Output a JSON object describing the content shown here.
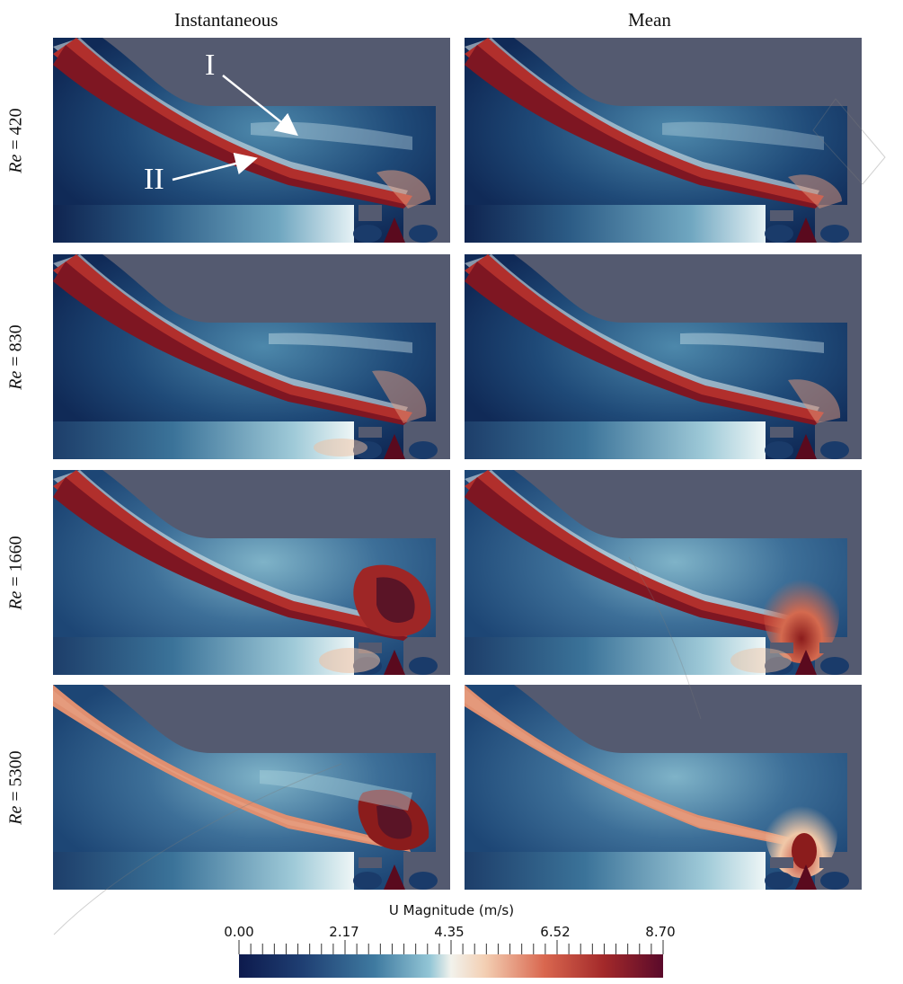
{
  "columns": [
    "Instantaneous",
    "Mean"
  ],
  "rows": [
    {
      "var": "Re",
      "op": "=",
      "value": "420"
    },
    {
      "var": "Re",
      "op": "=",
      "value": "830"
    },
    {
      "var": "Re",
      "op": "=",
      "value": "1660"
    },
    {
      "var": "Re",
      "op": "=",
      "value": "5300"
    }
  ],
  "annotations": {
    "label_1": "I",
    "label_2": "II"
  },
  "colorbar": {
    "title": "U Magnitude (m/s)",
    "ticks": [
      "0.00",
      "2.17",
      "4.35",
      "6.52",
      "8.70"
    ],
    "colors": [
      "#0d1a4d",
      "#2e5c85",
      "#5b97b4",
      "#dff0f5",
      "#f6e2cf",
      "#d9674f",
      "#8b1c1c",
      "#5a0a2a"
    ]
  },
  "background_color": "#545a70"
}
